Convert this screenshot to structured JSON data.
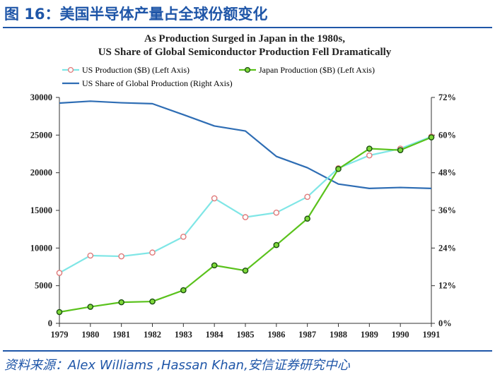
{
  "header": {
    "figure_label": "图 16：",
    "figure_title": "美国半导体产量占全球份额变化"
  },
  "source_line": "资料来源：Alex Williams ,Hassan Khan,安信证券研究中心",
  "chart_data": {
    "type": "line",
    "title": "As Production Surged in Japan in the 1980s,",
    "subtitle": "US Share of Global Semiconductor Production Fell Dramatically",
    "x": [
      1979,
      1980,
      1981,
      1982,
      1983,
      1984,
      1985,
      1986,
      1987,
      1988,
      1989,
      1990,
      1991
    ],
    "x_tick_labels": [
      "1979",
      "1980",
      "1981",
      "1982",
      "1983",
      "1984",
      "1985",
      "1986",
      "1987",
      "1988",
      "1989",
      "1990",
      "1991"
    ],
    "left_axis": {
      "ylim": [
        0,
        30000
      ],
      "ticks": [
        "0",
        "5000",
        "10000",
        "15000",
        "20000",
        "25000",
        "30000"
      ]
    },
    "right_axis": {
      "ylim": [
        0,
        72
      ],
      "ticks": [
        "0%",
        "12%",
        "24%",
        "36%",
        "48%",
        "60%",
        "72%"
      ]
    },
    "series": [
      {
        "name": "US Production ($B) (Left Axis)",
        "axis": "left",
        "color": "#7fe6e6",
        "marker_edge": "#e07a7a",
        "values": [
          6700,
          9000,
          8900,
          9400,
          11500,
          16600,
          14100,
          14700,
          16800,
          20600,
          22300,
          23200,
          24800
        ]
      },
      {
        "name": "Japan Production ($B) (Left Axis)",
        "axis": "left",
        "color": "#5ac21c",
        "marker_edge": "#1a4f10",
        "values": [
          1500,
          2200,
          2800,
          2900,
          4400,
          7700,
          7000,
          10400,
          13900,
          20500,
          23200,
          23000,
          24700
        ]
      },
      {
        "name": "US Share of Global Production (Right Axis)",
        "axis": "right",
        "color": "#2e6db4",
        "values": [
          70.2,
          70.8,
          70.3,
          70.0,
          66.5,
          62.9,
          61.3,
          53.2,
          49.6,
          44.4,
          43.0,
          43.3,
          43.0
        ]
      }
    ],
    "grid": false,
    "legend_position": "top"
  }
}
